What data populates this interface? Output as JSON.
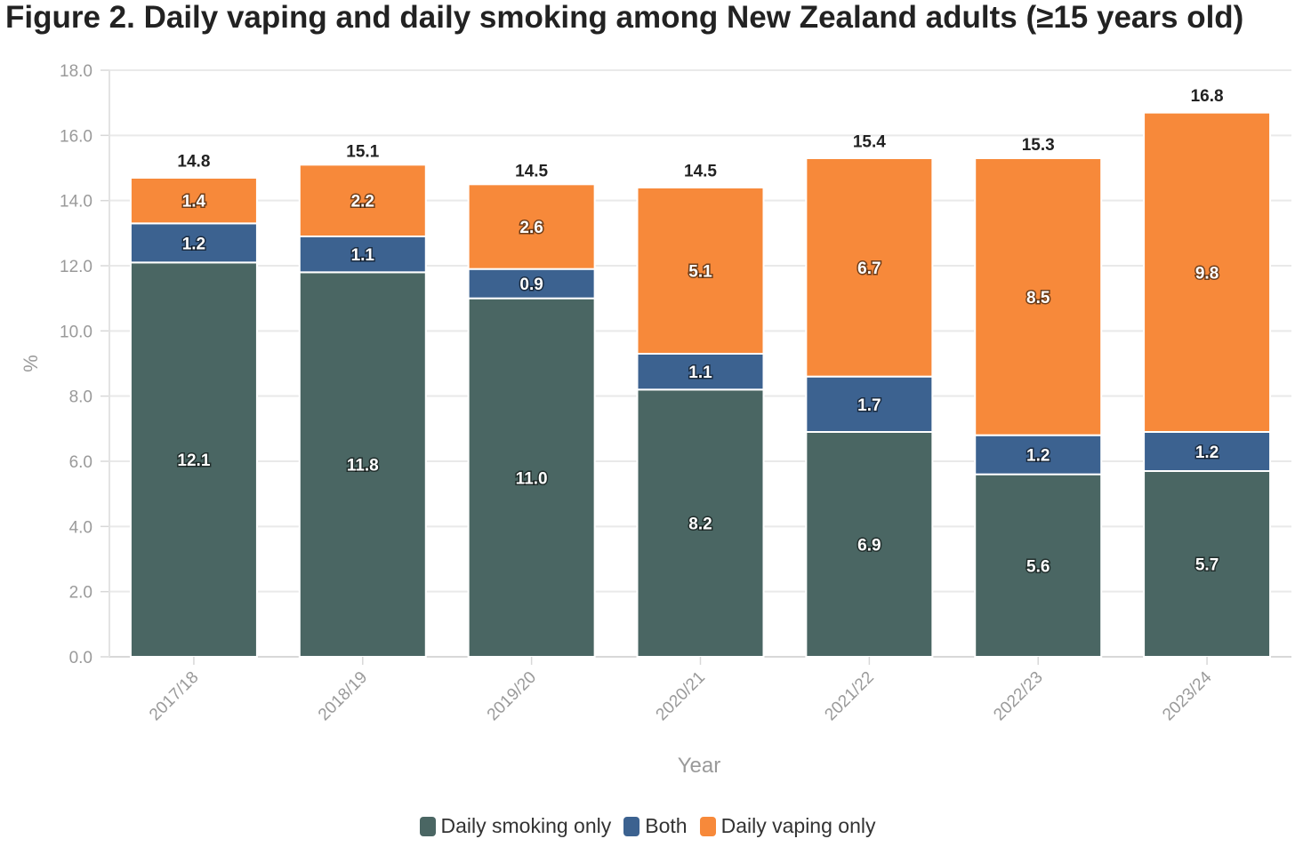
{
  "title": "Figure 2. Daily vaping and daily smoking among New Zealand adults (≥15 years old)",
  "chart_data": {
    "type": "bar",
    "stacked": true,
    "categories": [
      "2017/18",
      "2018/19",
      "2019/20",
      "2020/21",
      "2021/22",
      "2022/23",
      "2023/24"
    ],
    "series": [
      {
        "name": "Daily smoking only",
        "color": "#4a6663",
        "values": [
          12.1,
          11.8,
          11.0,
          8.2,
          6.9,
          5.6,
          5.7
        ]
      },
      {
        "name": "Both",
        "color": "#3c6290",
        "values": [
          1.2,
          1.1,
          0.9,
          1.1,
          1.7,
          1.2,
          1.2
        ]
      },
      {
        "name": "Daily vaping only",
        "color": "#f7893a",
        "values": [
          1.4,
          2.2,
          2.6,
          5.1,
          6.7,
          8.5,
          9.8
        ]
      }
    ],
    "totals": [
      14.8,
      15.1,
      14.5,
      14.5,
      15.4,
      15.3,
      16.8
    ],
    "xlabel": "Year",
    "ylabel": "%",
    "ylim": [
      0,
      18
    ],
    "yticks": [
      "0.0",
      "2.0",
      "4.0",
      "6.0",
      "8.0",
      "10.0",
      "12.0",
      "14.0",
      "16.0",
      "18.0"
    ],
    "grid": true,
    "legend_position": "bottom"
  }
}
